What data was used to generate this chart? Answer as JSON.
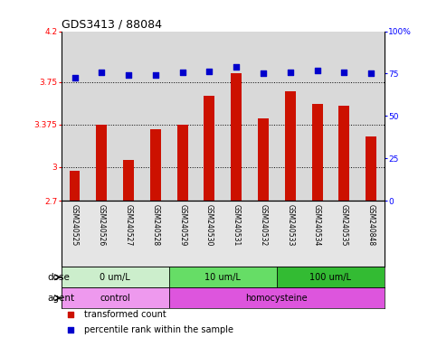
{
  "title": "GDS3413 / 88084",
  "samples": [
    "GSM240525",
    "GSM240526",
    "GSM240527",
    "GSM240528",
    "GSM240529",
    "GSM240530",
    "GSM240531",
    "GSM240532",
    "GSM240533",
    "GSM240534",
    "GSM240535",
    "GSM240848"
  ],
  "bar_values": [
    2.97,
    3.375,
    3.06,
    3.33,
    3.375,
    3.63,
    3.83,
    3.43,
    3.67,
    3.56,
    3.54,
    3.27
  ],
  "percentile_values": [
    72.5,
    76,
    74,
    74,
    76,
    76.5,
    79,
    75.5,
    76,
    77,
    76,
    75
  ],
  "ylim_left": [
    2.7,
    4.2
  ],
  "ylim_right": [
    0,
    100
  ],
  "yticks_left": [
    2.7,
    3.0,
    3.375,
    3.75,
    4.2
  ],
  "ytick_labels_left": [
    "2.7",
    "3",
    "3.375",
    "3.75",
    "4.2"
  ],
  "yticks_right": [
    0,
    25,
    50,
    75,
    100
  ],
  "ytick_labels_right": [
    "0",
    "25",
    "50",
    "75",
    "100%"
  ],
  "bar_color": "#cc1100",
  "dot_color": "#0000cc",
  "grid_yticks": [
    3.0,
    3.375,
    3.75
  ],
  "dose_groups": [
    {
      "label": "0 um/L",
      "start": 0,
      "end": 4
    },
    {
      "label": "10 um/L",
      "start": 4,
      "end": 8
    },
    {
      "label": "100 um/L",
      "start": 8,
      "end": 12
    }
  ],
  "dose_colors": [
    "#cceecc",
    "#66dd66",
    "#33bb33"
  ],
  "agent_groups": [
    {
      "label": "control",
      "start": 0,
      "end": 4
    },
    {
      "label": "homocysteine",
      "start": 4,
      "end": 12
    }
  ],
  "agent_colors": [
    "#ee99ee",
    "#dd55dd"
  ],
  "dose_label": "dose",
  "agent_label": "agent",
  "legend_items": [
    {
      "color": "#cc1100",
      "label": "transformed count"
    },
    {
      "color": "#0000cc",
      "label": "percentile rank within the sample"
    }
  ],
  "bg_color": "#ffffff",
  "plot_bg_color": "#e8e8e8",
  "bar_width": 0.4
}
